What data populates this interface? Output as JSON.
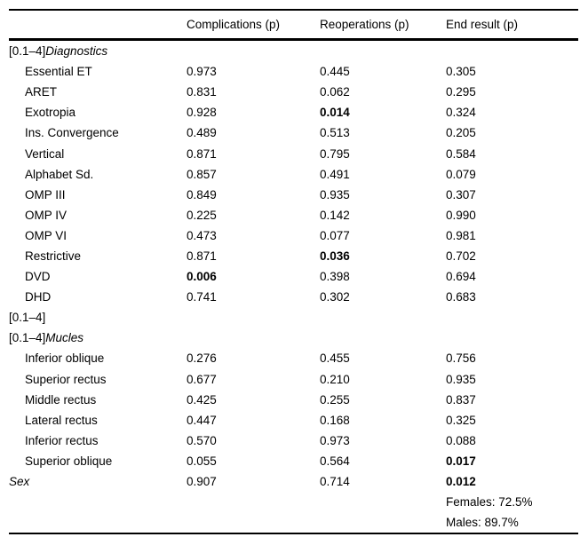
{
  "page": {
    "background": "#ffffff",
    "text_color": "#000000",
    "rule_color": "#000000"
  },
  "table": {
    "header": {
      "col_label": "",
      "col_complications": "Complications (p)",
      "col_reoperations": "Reoperations (p)",
      "col_end_result": "End result (p)"
    },
    "rows": [
      {
        "pre": "[0.1–4]",
        "label": "Diagnostics",
        "italic": true,
        "indent": false,
        "values": [
          "",
          "",
          ""
        ],
        "bold": [
          false,
          false,
          false
        ]
      },
      {
        "pre": "",
        "label": "Essential ET",
        "italic": false,
        "indent": true,
        "values": [
          "0.973",
          "0.445",
          "0.305"
        ],
        "bold": [
          false,
          false,
          false
        ]
      },
      {
        "pre": "",
        "label": "ARET",
        "italic": false,
        "indent": true,
        "values": [
          "0.831",
          "0.062",
          "0.295"
        ],
        "bold": [
          false,
          false,
          false
        ]
      },
      {
        "pre": "",
        "label": "Exotropia",
        "italic": false,
        "indent": true,
        "values": [
          "0.928",
          "0.014",
          "0.324"
        ],
        "bold": [
          false,
          true,
          false
        ]
      },
      {
        "pre": "",
        "label": "Ins. Convergence",
        "italic": false,
        "indent": true,
        "values": [
          "0.489",
          "0.513",
          "0.205"
        ],
        "bold": [
          false,
          false,
          false
        ]
      },
      {
        "pre": "",
        "label": "Vertical",
        "italic": false,
        "indent": true,
        "values": [
          "0.871",
          "0.795",
          "0.584"
        ],
        "bold": [
          false,
          false,
          false
        ]
      },
      {
        "pre": "",
        "label": "Alphabet Sd.",
        "italic": false,
        "indent": true,
        "values": [
          "0.857",
          "0.491",
          "0.079"
        ],
        "bold": [
          false,
          false,
          false
        ]
      },
      {
        "pre": "",
        "label": "OMP III",
        "italic": false,
        "indent": true,
        "values": [
          "0.849",
          "0.935",
          "0.307"
        ],
        "bold": [
          false,
          false,
          false
        ]
      },
      {
        "pre": "",
        "label": "OMP IV",
        "italic": false,
        "indent": true,
        "values": [
          "0.225",
          "0.142",
          "0.990"
        ],
        "bold": [
          false,
          false,
          false
        ]
      },
      {
        "pre": "",
        "label": "OMP VI",
        "italic": false,
        "indent": true,
        "values": [
          "0.473",
          "0.077",
          "0.981"
        ],
        "bold": [
          false,
          false,
          false
        ]
      },
      {
        "pre": "",
        "label": "Restrictive",
        "italic": false,
        "indent": true,
        "values": [
          "0.871",
          "0.036",
          "0.702"
        ],
        "bold": [
          false,
          true,
          false
        ]
      },
      {
        "pre": "",
        "label": "DVD",
        "italic": false,
        "indent": true,
        "values": [
          "0.006",
          "0.398",
          "0.694"
        ],
        "bold": [
          true,
          false,
          false
        ]
      },
      {
        "pre": "",
        "label": "DHD",
        "italic": false,
        "indent": true,
        "values": [
          "0.741",
          "0.302",
          "0.683"
        ],
        "bold": [
          false,
          false,
          false
        ]
      },
      {
        "pre": "[0.1–4]",
        "label": "",
        "italic": false,
        "indent": false,
        "values": [
          "",
          "",
          ""
        ],
        "bold": [
          false,
          false,
          false
        ]
      },
      {
        "pre": "[0.1–4]",
        "label": "Mucles",
        "italic": true,
        "indent": false,
        "values": [
          "",
          "",
          ""
        ],
        "bold": [
          false,
          false,
          false
        ]
      },
      {
        "pre": "",
        "label": "Inferior oblique",
        "italic": false,
        "indent": true,
        "values": [
          "0.276",
          "0.455",
          "0.756"
        ],
        "bold": [
          false,
          false,
          false
        ]
      },
      {
        "pre": "",
        "label": "Superior rectus",
        "italic": false,
        "indent": true,
        "values": [
          "0.677",
          "0.210",
          "0.935"
        ],
        "bold": [
          false,
          false,
          false
        ]
      },
      {
        "pre": "",
        "label": "Middle rectus",
        "italic": false,
        "indent": true,
        "values": [
          "0.425",
          "0.255",
          "0.837"
        ],
        "bold": [
          false,
          false,
          false
        ]
      },
      {
        "pre": "",
        "label": "Lateral rectus",
        "italic": false,
        "indent": true,
        "values": [
          "0.447",
          "0.168",
          "0.325"
        ],
        "bold": [
          false,
          false,
          false
        ]
      },
      {
        "pre": "",
        "label": "Inferior rectus",
        "italic": false,
        "indent": true,
        "values": [
          "0.570",
          "0.973",
          "0.088"
        ],
        "bold": [
          false,
          false,
          false
        ]
      },
      {
        "pre": "",
        "label": "Superior oblique",
        "italic": false,
        "indent": true,
        "values": [
          "0.055",
          "0.564",
          "0.017"
        ],
        "bold": [
          false,
          false,
          true
        ]
      },
      {
        "pre": "",
        "label": "Sex",
        "italic": true,
        "indent": false,
        "values": [
          "0.907",
          "0.714",
          "0.012"
        ],
        "bold": [
          false,
          false,
          true
        ]
      },
      {
        "pre": "",
        "label": "",
        "italic": false,
        "indent": false,
        "values": [
          "",
          "",
          "Females: 72.5%"
        ],
        "bold": [
          false,
          false,
          false
        ]
      },
      {
        "pre": "",
        "label": "",
        "italic": false,
        "indent": false,
        "values": [
          "",
          "",
          "Males: 89.7%"
        ],
        "bold": [
          false,
          false,
          false
        ]
      }
    ]
  }
}
